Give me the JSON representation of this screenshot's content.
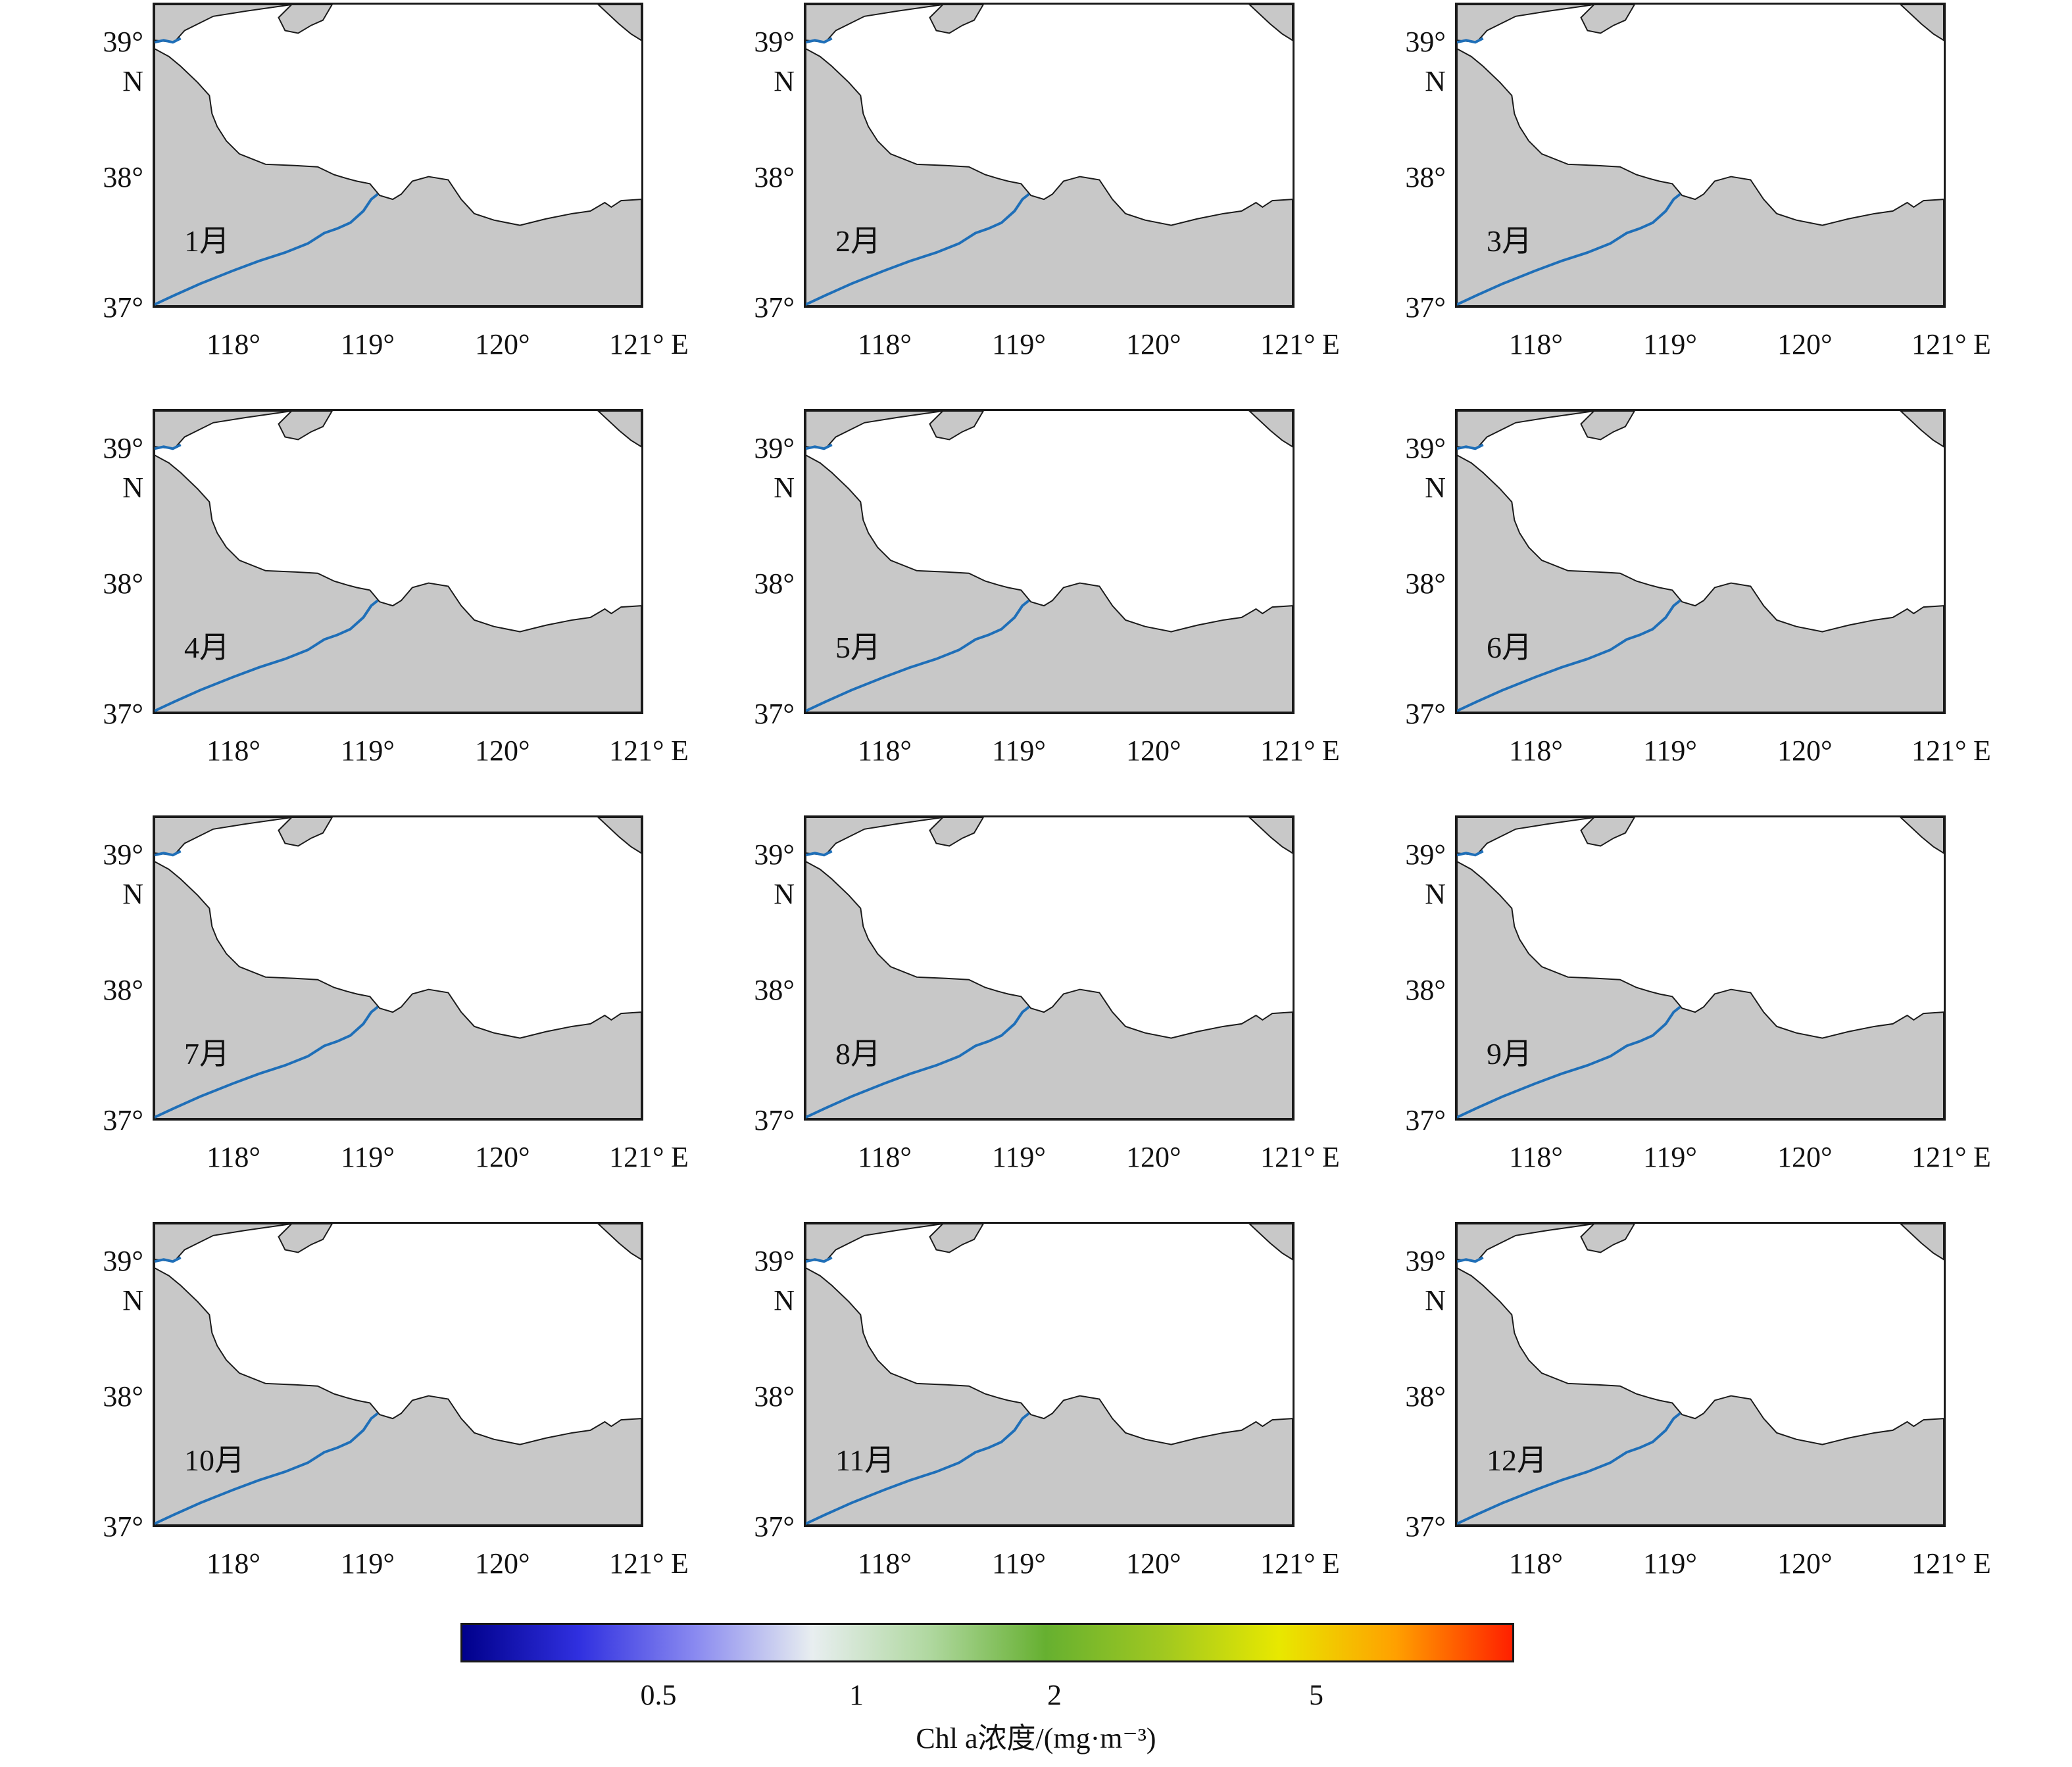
{
  "panels": [
    {
      "month": "1月"
    },
    {
      "month": "2月"
    },
    {
      "month": "3月"
    },
    {
      "month": "4月"
    },
    {
      "month": "5月"
    },
    {
      "month": "6月"
    },
    {
      "month": "7月"
    },
    {
      "month": "8月"
    },
    {
      "month": "9月"
    },
    {
      "month": "10月"
    },
    {
      "month": "11月"
    },
    {
      "month": "12月"
    }
  ],
  "axes": {
    "lat_ticks": [
      "37°",
      "38°",
      "39°"
    ],
    "lat_hemisphere": "N",
    "lon_ticks": [
      "118°",
      "119°",
      "120°",
      "121°"
    ],
    "lon_hemisphere": "E"
  },
  "colorbar": {
    "ticks": [
      "0.5",
      "1",
      "2",
      "5"
    ],
    "title": "Chl a浓度/(mg·m⁻³)",
    "colors": [
      "#00008b",
      "#3030e0",
      "#8a8af0",
      "#e8eef0",
      "#b0d8a0",
      "#66b030",
      "#a0c820",
      "#e8e800",
      "#ffa000",
      "#ff2000"
    ],
    "scale": "log"
  },
  "colors": {
    "land": "#c8c8c8",
    "sea": "#ffffff",
    "river": "#1f6fb8",
    "station": "#000000"
  }
}
